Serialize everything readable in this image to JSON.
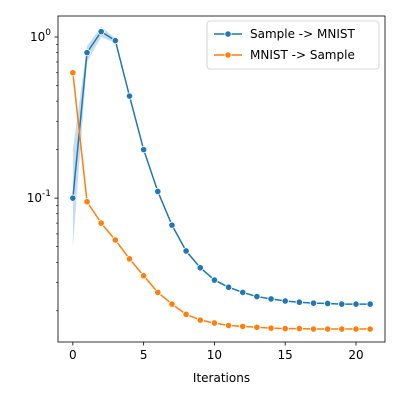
{
  "chart_data": {
    "type": "line",
    "xlabel": "Iterations",
    "ylabel": "",
    "title": "",
    "xlim": [
      -1.05,
      22.05
    ],
    "ylim": [
      0.0128,
      1.35
    ],
    "yscale": "log",
    "grid": false,
    "legend_position": "top-right",
    "x_ticks": [
      0,
      5,
      10,
      15,
      20
    ],
    "x_tick_labels": [
      "0",
      "5",
      "10",
      "15",
      "20"
    ],
    "y_ticks": [
      0.1,
      1
    ],
    "y_tick_labels": [
      "10^{-1}",
      "10^{0}"
    ],
    "series": [
      {
        "name": "Sample -> MNIST",
        "color": "#1f77b4",
        "marker": "circle",
        "x": [
          0,
          1,
          2,
          3,
          4,
          5,
          6,
          7,
          8,
          9,
          10,
          11,
          12,
          13,
          14,
          15,
          16,
          17,
          18,
          19,
          20,
          21
        ],
        "y": [
          0.1,
          0.8,
          1.08,
          0.95,
          0.43,
          0.2,
          0.11,
          0.068,
          0.047,
          0.037,
          0.031,
          0.028,
          0.026,
          0.0245,
          0.0237,
          0.023,
          0.0226,
          0.0223,
          0.0222,
          0.022,
          0.022,
          0.022
        ],
        "band_lower": [
          0.05,
          0.7,
          1.0,
          0.92,
          0.42,
          0.198,
          0.108,
          0.067,
          0.046,
          0.0365,
          0.0305,
          0.0277,
          0.0257,
          0.0243,
          0.0235,
          0.0228,
          0.0224,
          0.0221,
          0.022,
          0.0218,
          0.0218,
          0.0218
        ],
        "band_upper": [
          0.2,
          0.88,
          1.16,
          0.98,
          0.44,
          0.202,
          0.112,
          0.069,
          0.048,
          0.0375,
          0.0315,
          0.0283,
          0.0263,
          0.0247,
          0.0239,
          0.0232,
          0.0228,
          0.0225,
          0.0224,
          0.0222,
          0.0222,
          0.0222
        ]
      },
      {
        "name": "MNIST -> Sample",
        "color": "#ff7f0e",
        "marker": "circle",
        "x": [
          0,
          1,
          2,
          3,
          4,
          5,
          6,
          7,
          8,
          9,
          10,
          11,
          12,
          13,
          14,
          15,
          16,
          17,
          18,
          19,
          20,
          21
        ],
        "y": [
          0.6,
          0.095,
          0.07,
          0.055,
          0.042,
          0.033,
          0.026,
          0.022,
          0.019,
          0.0175,
          0.0168,
          0.0162,
          0.016,
          0.0158,
          0.0156,
          0.0155,
          0.0155,
          0.0154,
          0.0154,
          0.0154,
          0.0154,
          0.0154
        ]
      }
    ]
  }
}
